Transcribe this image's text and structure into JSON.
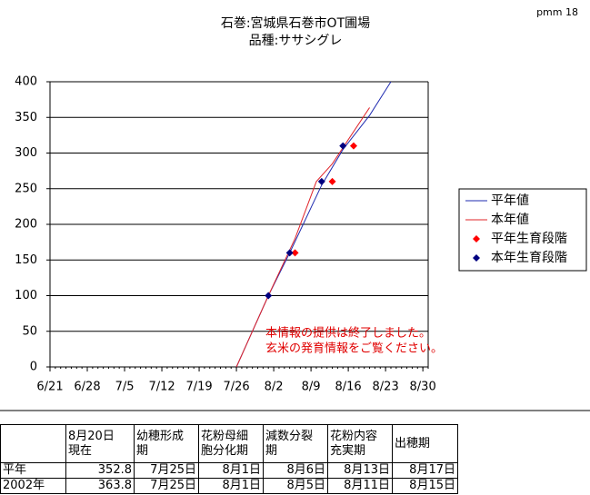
{
  "chart_data": {
    "type": "line",
    "title": "石巻:宮城県石巻市OT圃場",
    "subtitle": "品種:ササシグレ",
    "corner_note": "pmm 18",
    "xlim": [
      "6/21",
      "8/31"
    ],
    "xticks": [
      "6/21",
      "6/28",
      "7/5",
      "7/12",
      "7/19",
      "7/26",
      "8/2",
      "8/9",
      "8/16",
      "8/23",
      "8/30"
    ],
    "ylim": [
      0,
      400
    ],
    "yticks": [
      0,
      50,
      100,
      150,
      200,
      250,
      300,
      350,
      400
    ],
    "grid": true,
    "legend": "right",
    "series": [
      {
        "name": "平年値",
        "color": "#1f2bb0",
        "style": "line",
        "x": [
          "7/26",
          "8/1",
          "8/5",
          "8/11",
          "8/15",
          "8/20",
          "8/24"
        ],
        "values": [
          0,
          100,
          160,
          255,
          305,
          352.8,
          400
        ]
      },
      {
        "name": "本年値",
        "color": "#e0242a",
        "style": "line",
        "x": [
          "7/26",
          "8/1",
          "8/6",
          "8/10",
          "8/13",
          "8/20"
        ],
        "values": [
          0,
          100,
          180,
          260,
          285,
          363.8
        ]
      },
      {
        "name": "平年生育段階",
        "color": "#ff0000",
        "style": "marker",
        "x": [
          "8/6",
          "8/13",
          "8/17"
        ],
        "values": [
          160,
          260,
          310
        ]
      },
      {
        "name": "本年生育段階",
        "color": "#000080",
        "style": "marker",
        "x": [
          "8/1",
          "8/5",
          "8/11",
          "8/15"
        ],
        "values": [
          100,
          160,
          260,
          310
        ]
      }
    ],
    "annotations": [
      "本情報の提供は終了しました。",
      "玄米の発育情報をご覧ください。"
    ]
  },
  "table": {
    "header": [
      "",
      "8月20日\n現在",
      "幼穂形成\n期",
      "花粉母細\n胞分化期",
      "減数分裂\n期",
      "花粉内容\n充実期",
      "出穂期"
    ],
    "rows": [
      [
        "平年",
        "352.8",
        "7月25日",
        "8月1日",
        "8月6日",
        "8月13日",
        "8月17日"
      ],
      [
        "2002年",
        "363.8",
        "7月25日",
        "8月1日",
        "8月5日",
        "8月11日",
        "8月15日"
      ]
    ]
  }
}
